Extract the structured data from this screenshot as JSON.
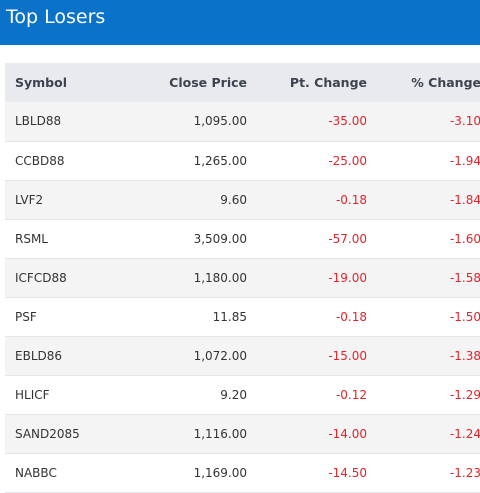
{
  "header": {
    "title": "Top Losers"
  },
  "colors": {
    "header_bg": "#0b72c9",
    "negative": "#e0262c",
    "header_row_bg": "#e8eaed"
  },
  "table": {
    "columns": {
      "symbol": "Symbol",
      "close": "Close Price",
      "pt_change": "Pt. Change",
      "pct_change": "% Change"
    },
    "rows": [
      {
        "symbol": "LBLD88",
        "close": "1,095.00",
        "pt_change": "-35.00",
        "pct_change": "-3.10"
      },
      {
        "symbol": "CCBD88",
        "close": "1,265.00",
        "pt_change": "-25.00",
        "pct_change": "-1.94"
      },
      {
        "symbol": "LVF2",
        "close": "9.60",
        "pt_change": "-0.18",
        "pct_change": "-1.84"
      },
      {
        "symbol": "RSML",
        "close": "3,509.00",
        "pt_change": "-57.00",
        "pct_change": "-1.60"
      },
      {
        "symbol": "ICFCD88",
        "close": "1,180.00",
        "pt_change": "-19.00",
        "pct_change": "-1.58"
      },
      {
        "symbol": "PSF",
        "close": "11.85",
        "pt_change": "-0.18",
        "pct_change": "-1.50"
      },
      {
        "symbol": "EBLD86",
        "close": "1,072.00",
        "pt_change": "-15.00",
        "pct_change": "-1.38"
      },
      {
        "symbol": "HLICF",
        "close": "9.20",
        "pt_change": "-0.12",
        "pct_change": "-1.29"
      },
      {
        "symbol": "SAND2085",
        "close": "1,116.00",
        "pt_change": "-14.00",
        "pct_change": "-1.24"
      },
      {
        "symbol": "NABBC",
        "close": "1,169.00",
        "pt_change": "-14.50",
        "pct_change": "-1.23"
      }
    ]
  }
}
